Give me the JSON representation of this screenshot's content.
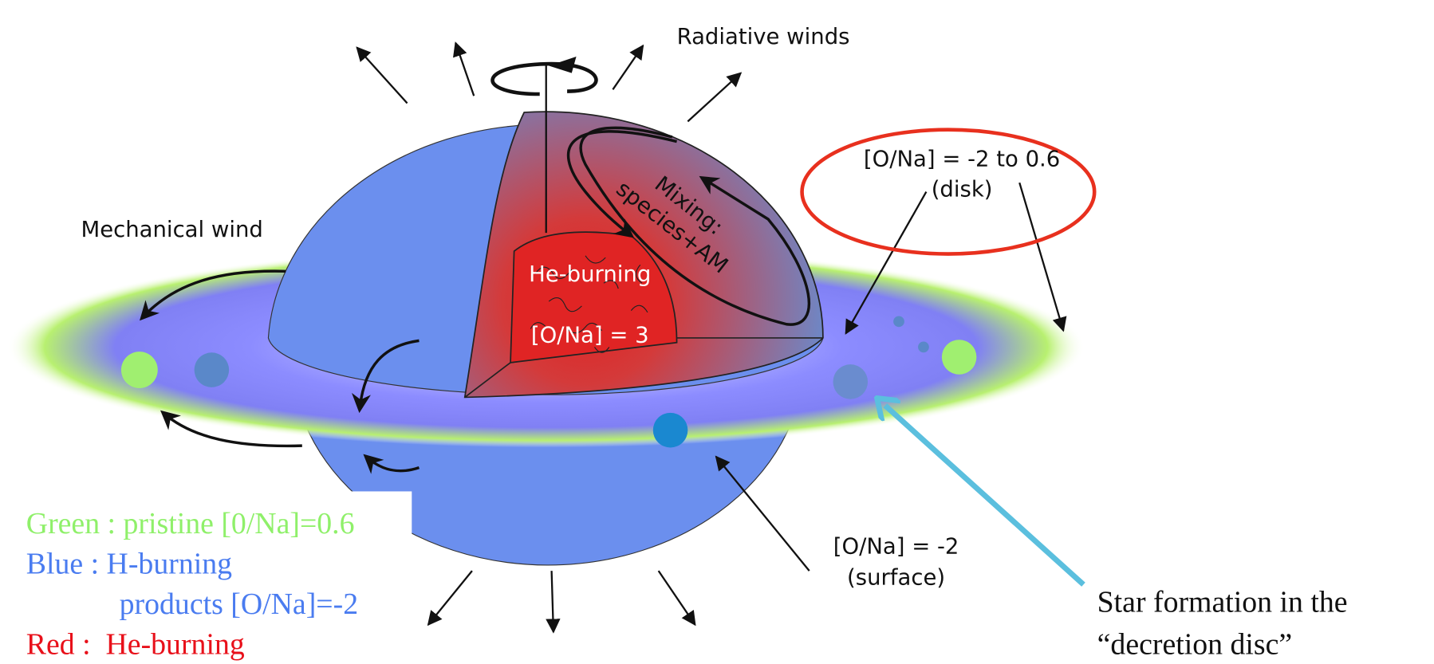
{
  "labels": {
    "radiative_winds": "Radiative winds",
    "mechanical_wind": "Mechanical wind",
    "mixing": "Mixing:",
    "mixing_species": "species+AM",
    "core": "He-burning",
    "core_ratio": "[O/Na] = 3",
    "disk_ratio": "[O/Na] = -2 to 0.6",
    "disk": "(disk)",
    "surface_ratio": "[O/Na] = -2",
    "surface": "(surface)"
  },
  "legend": [
    "Green : pristine [0/Na]=0.6",
    "Blue : H-burning",
    "products [O/Na]=-2",
    "Red :  He-burning"
  ],
  "caption": [
    "Star formation in the",
    "“decretion disc”"
  ]
}
